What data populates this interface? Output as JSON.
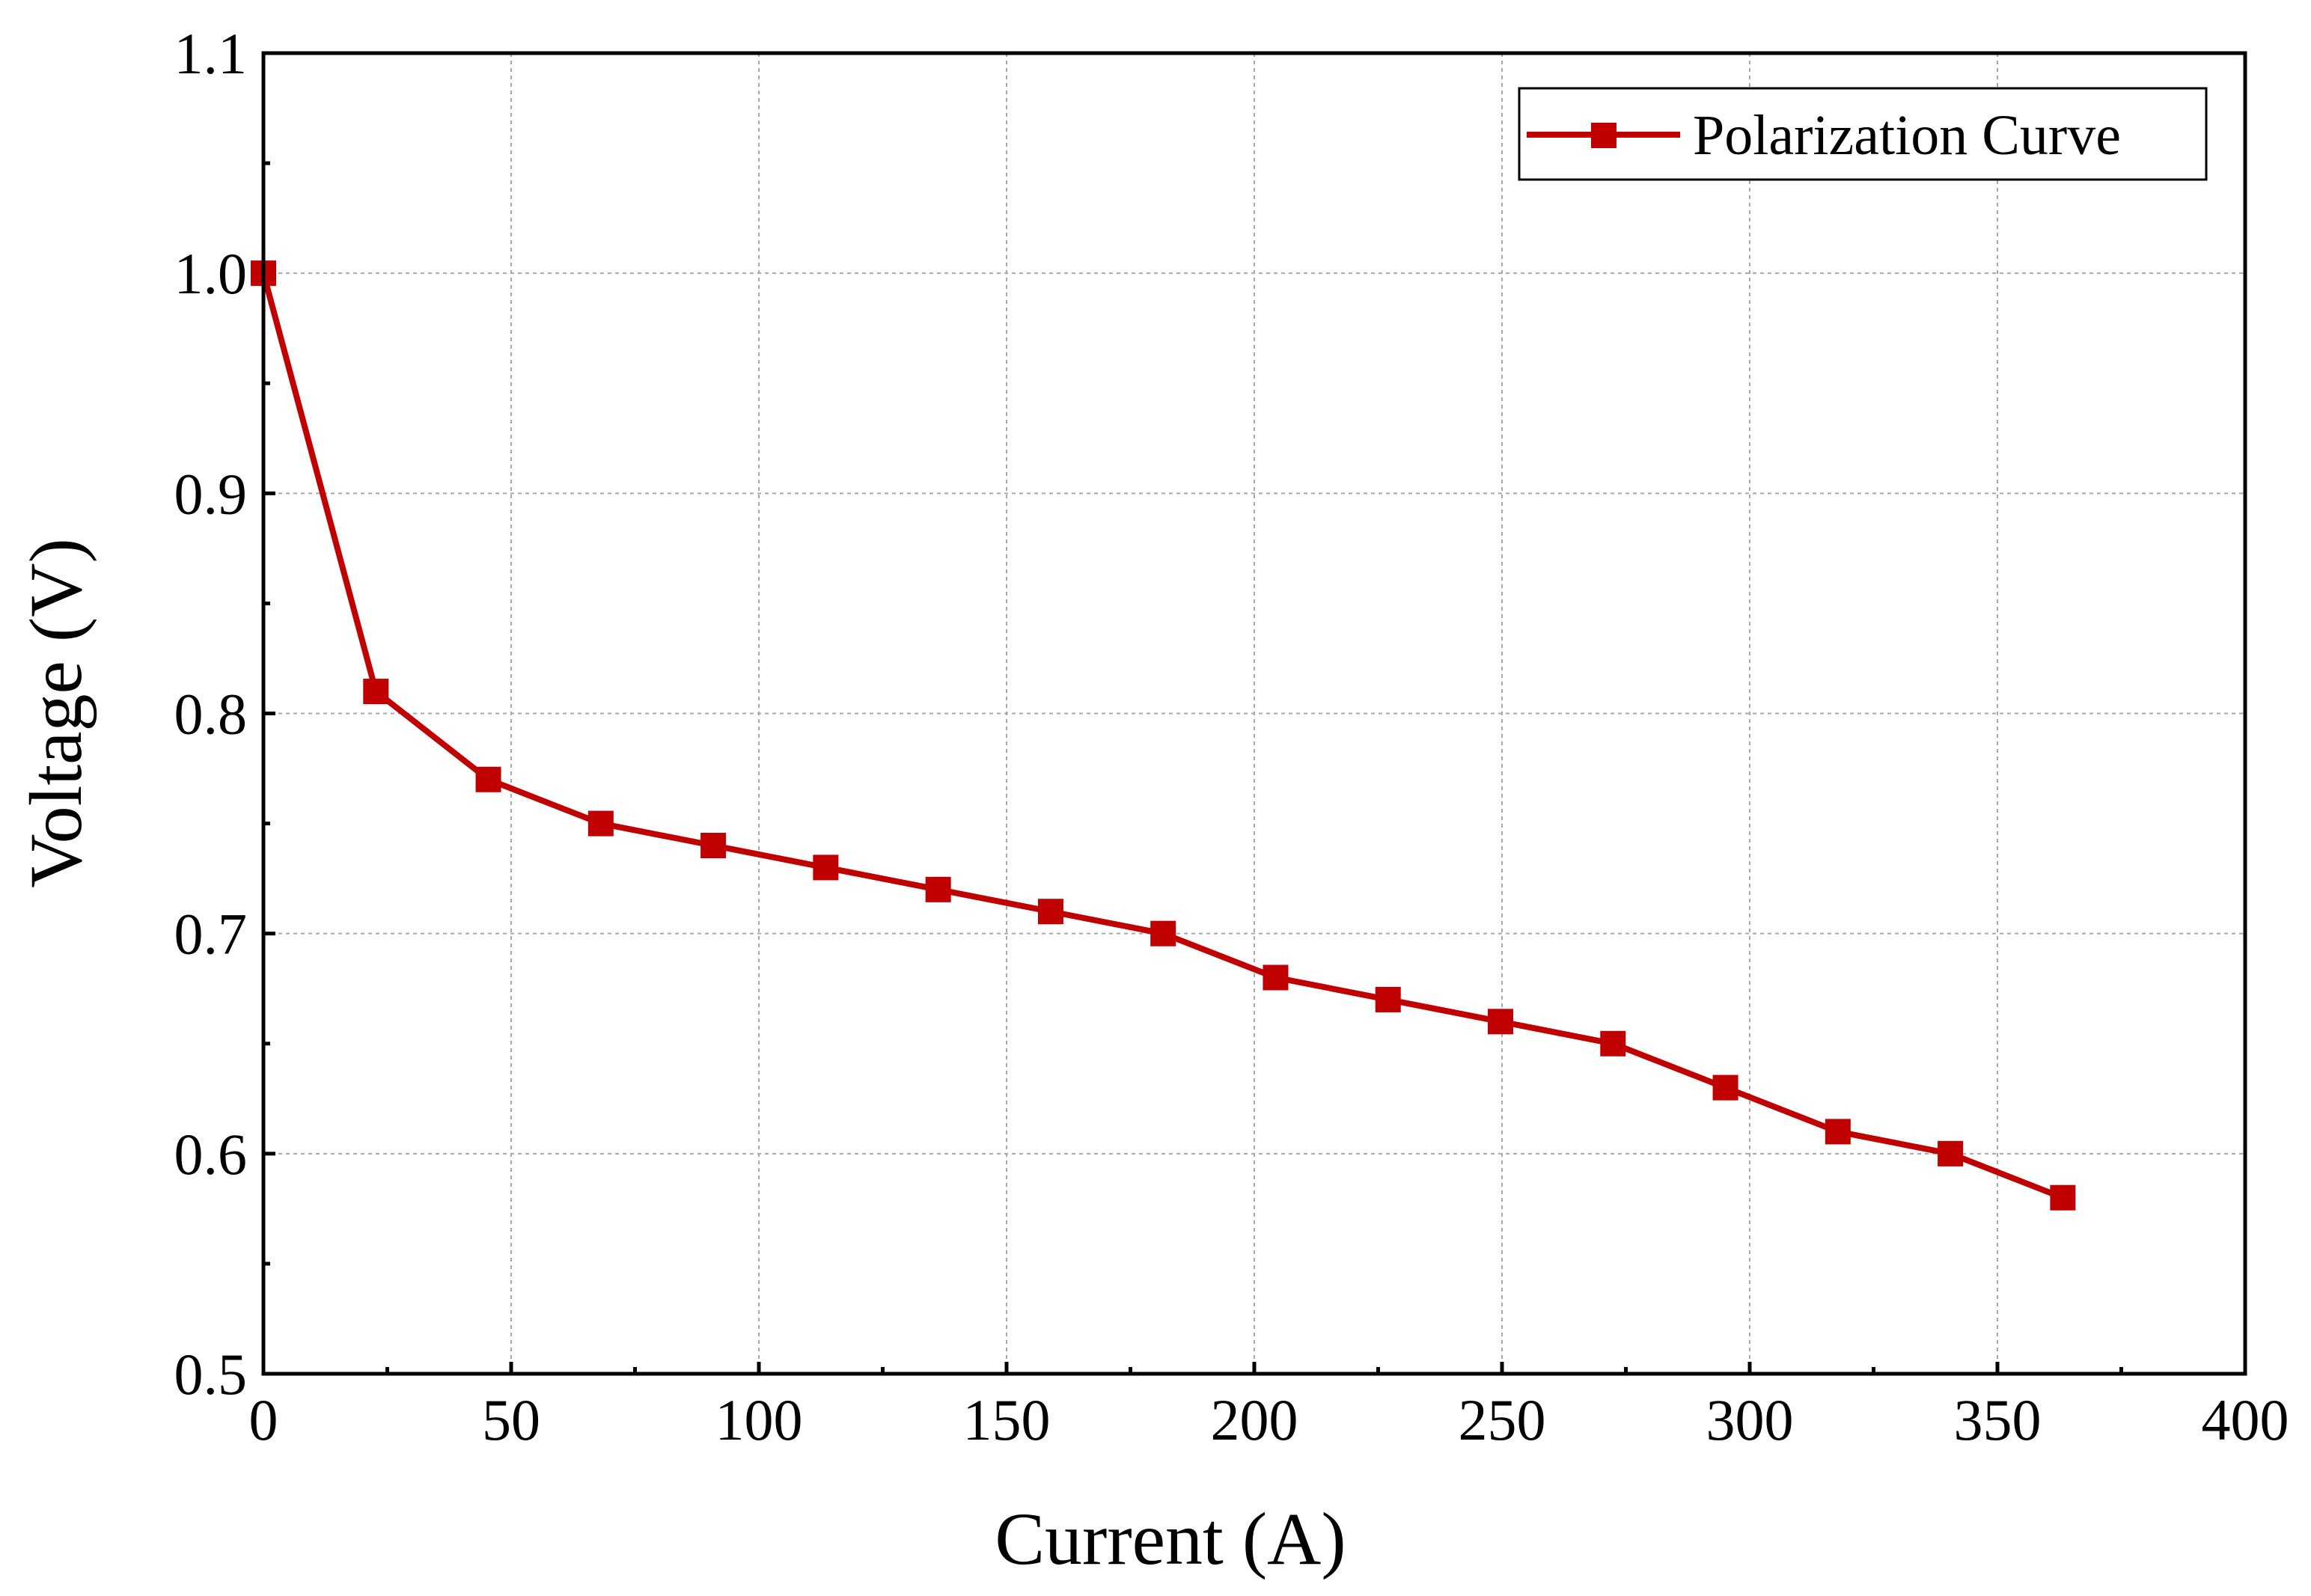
{
  "chart_data": {
    "type": "line",
    "title": "",
    "xlabel": "Current (A)",
    "ylabel": "Voltage (V)",
    "xlim": [
      0,
      400
    ],
    "ylim": [
      0.5,
      1.1
    ],
    "x_ticks": [
      0,
      50,
      100,
      150,
      200,
      250,
      300,
      350,
      400
    ],
    "x_tick_labels": [
      "0",
      "50",
      "100",
      "150",
      "200",
      "250",
      "300",
      "350",
      "400"
    ],
    "y_ticks": [
      0.5,
      0.6,
      0.7,
      0.8,
      0.9,
      1.0,
      1.1
    ],
    "y_tick_labels": [
      "0.5",
      "0.6",
      "0.7",
      "0.8",
      "0.9",
      "1.0",
      "1.1"
    ],
    "grid": true,
    "legend_position": "top-right",
    "series": [
      {
        "name": "Polarization Curve",
        "color": "#c00000",
        "marker": "square",
        "x": [
          0,
          22.7,
          45.4,
          68.1,
          90.8,
          113.5,
          136.2,
          158.9,
          181.6,
          204.3,
          227,
          249.7,
          272.4,
          295.1,
          317.8,
          340.5,
          363.2
        ],
        "y": [
          1.0,
          0.81,
          0.77,
          0.75,
          0.74,
          0.73,
          0.72,
          0.71,
          0.7,
          0.68,
          0.67,
          0.66,
          0.65,
          0.63,
          0.61,
          0.6,
          0.58
        ]
      }
    ]
  }
}
